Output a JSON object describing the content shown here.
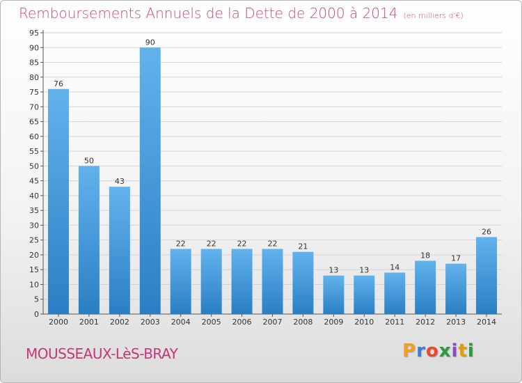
{
  "header": {
    "title": "Remboursements Annuels de la Dette de 2000 à 2014",
    "subtitle": "(en milliers d'€)"
  },
  "footer": {
    "commune": "MOUSSEAUX-LèS-BRAY",
    "logo": "Proxiti",
    "logo_colors": [
      "#f0a020",
      "#3a7fd0",
      "#e84a2a",
      "#2a9a3a",
      "#8a4ac8",
      "#e0a000",
      "#2a9a3a"
    ]
  },
  "colors": {
    "bar_top": "#62b2ec",
    "bar_bottom": "#2a7fc4",
    "title": "#d0457a"
  },
  "chart_data": {
    "type": "bar",
    "categories": [
      "2000",
      "2001",
      "2002",
      "2003",
      "2004",
      "2005",
      "2006",
      "2007",
      "2008",
      "2009",
      "2010",
      "2011",
      "2012",
      "2013",
      "2014"
    ],
    "values": [
      76,
      50,
      43,
      90,
      22,
      22,
      22,
      22,
      21,
      13,
      13,
      14,
      18,
      17,
      26
    ],
    "ylim": [
      0,
      95
    ],
    "yticks": [
      0,
      5,
      10,
      15,
      20,
      25,
      30,
      35,
      40,
      45,
      50,
      55,
      60,
      65,
      70,
      75,
      80,
      85,
      90,
      95
    ],
    "grid": true
  }
}
